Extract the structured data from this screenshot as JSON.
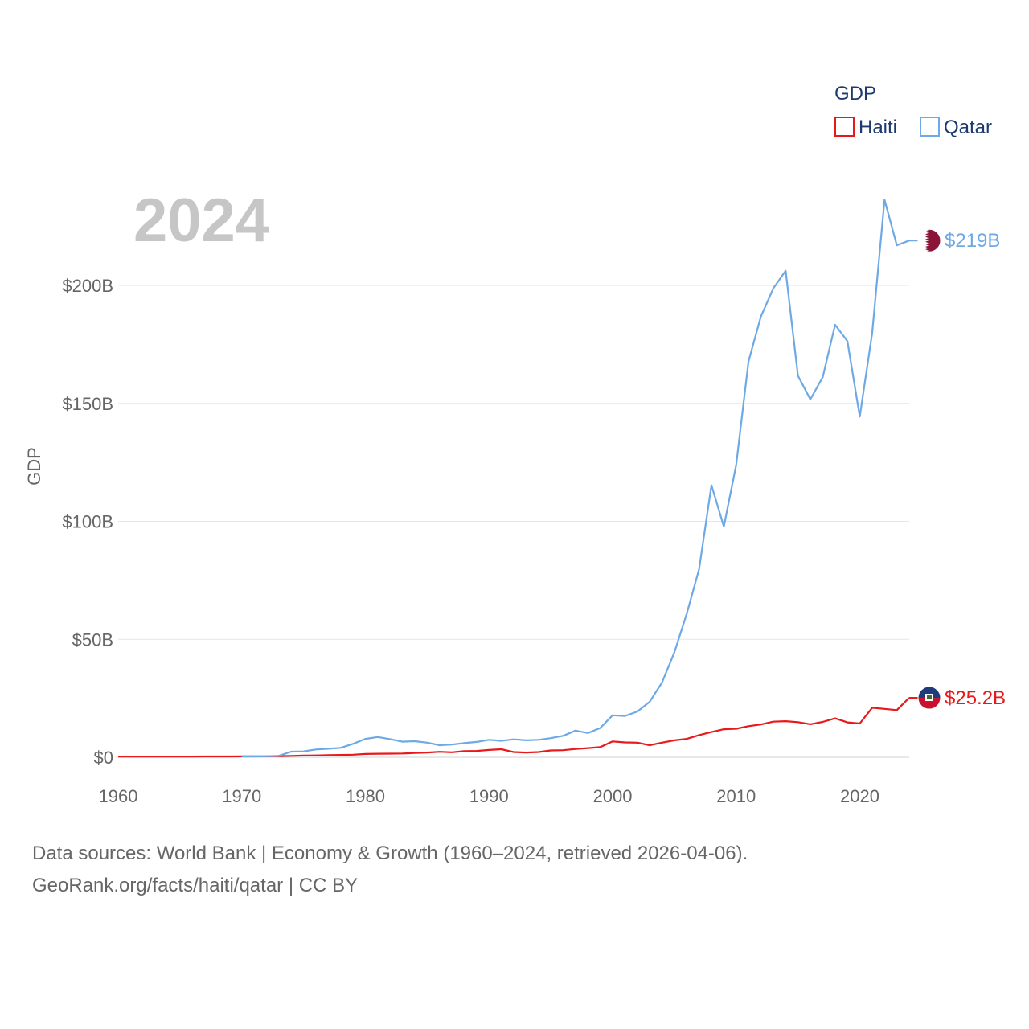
{
  "chart_data": {
    "type": "line",
    "title": "GDP",
    "year_label": "2024",
    "ylabel": "GDP",
    "xlabel": "",
    "xlim": [
      1960,
      2024
    ],
    "ylim": [
      0,
      200000000000
    ],
    "x_ticks": [
      1960,
      1970,
      1980,
      1990,
      2000,
      2010,
      2020
    ],
    "x_tick_labels": [
      "1960",
      "1970",
      "1980",
      "1990",
      "2000",
      "2010",
      "2020"
    ],
    "y_ticks": [
      0,
      50000000000,
      100000000000,
      150000000000,
      200000000000
    ],
    "y_tick_labels": [
      "$0",
      "$50B",
      "$100B",
      "$150B",
      "$200B"
    ],
    "legend_title": "GDP",
    "legend_position": "top-right",
    "grid": true,
    "series": [
      {
        "name": "Haiti",
        "color": "#e8191b",
        "end_label": "$25.2B",
        "flag_icon": "haiti-flag-icon",
        "x": [
          1960,
          1961,
          1962,
          1963,
          1964,
          1965,
          1966,
          1967,
          1968,
          1969,
          1970,
          1971,
          1972,
          1973,
          1974,
          1975,
          1976,
          1977,
          1978,
          1979,
          1980,
          1981,
          1982,
          1983,
          1984,
          1985,
          1986,
          1987,
          1988,
          1989,
          1990,
          1991,
          1992,
          1993,
          1994,
          1995,
          1996,
          1997,
          1998,
          1999,
          2000,
          2001,
          2002,
          2003,
          2004,
          2005,
          2006,
          2007,
          2008,
          2009,
          2010,
          2011,
          2012,
          2013,
          2014,
          2015,
          2016,
          2017,
          2018,
          2019,
          2020,
          2021,
          2022,
          2023,
          2024
        ],
        "values": [
          270000000,
          275000000,
          280000000,
          290000000,
          300000000,
          310000000,
          320000000,
          330000000,
          340000000,
          350000000,
          360000000,
          380000000,
          420000000,
          480000000,
          580000000,
          700000000,
          800000000,
          900000000,
          1000000000,
          1100000000,
          1400000000,
          1500000000,
          1550000000,
          1600000000,
          1800000000,
          2000000000,
          2300000000,
          2100000000,
          2600000000,
          2700000000,
          3100000000,
          3400000000,
          2200000000,
          2000000000,
          2200000000,
          2900000000,
          3000000000,
          3500000000,
          3900000000,
          4300000000,
          6700000000,
          6300000000,
          6200000000,
          5100000000,
          6200000000,
          7200000000,
          7800000000,
          9400000000,
          10700000000,
          11900000000,
          12100000000,
          13200000000,
          13900000000,
          15100000000,
          15300000000,
          14900000000,
          14000000000,
          15000000000,
          16500000000,
          14800000000,
          14300000000,
          21000000000,
          20500000000,
          20000000000,
          25200000000
        ]
      },
      {
        "name": "Qatar",
        "color": "#6ea9e6",
        "end_label": "$219B",
        "flag_icon": "qatar-flag-icon",
        "x": [
          1970,
          1971,
          1972,
          1973,
          1974,
          1975,
          1976,
          1977,
          1978,
          1979,
          1980,
          1981,
          1982,
          1983,
          1984,
          1985,
          1986,
          1987,
          1988,
          1989,
          1990,
          1991,
          1992,
          1993,
          1994,
          1995,
          1996,
          1997,
          1998,
          1999,
          2000,
          2001,
          2002,
          2003,
          2004,
          2005,
          2006,
          2007,
          2008,
          2009,
          2010,
          2011,
          2012,
          2013,
          2014,
          2015,
          2016,
          2017,
          2018,
          2019,
          2020,
          2021,
          2022,
          2023,
          2024
        ],
        "values": [
          300000000,
          350000000,
          400000000,
          600000000,
          2400000000,
          2500000000,
          3300000000,
          3600000000,
          4000000000,
          5700000000,
          7800000000,
          8600000000,
          7700000000,
          6600000000,
          6800000000,
          6200000000,
          5100000000,
          5400000000,
          6000000000,
          6500000000,
          7400000000,
          7000000000,
          7600000000,
          7200000000,
          7400000000,
          8100000000,
          9100000000,
          11300000000,
          10300000000,
          12400000000,
          17800000000,
          17500000000,
          19400000000,
          23500000000,
          31700000000,
          44500000000,
          60900000000,
          79700000000,
          115300000000,
          97800000000,
          124000000000,
          167800000000,
          186800000000,
          198700000000,
          206200000000,
          161700000000,
          151700000000,
          161100000000,
          183300000000,
          176400000000,
          144400000000,
          179700000000,
          236300000000,
          217000000000,
          219000000000
        ]
      }
    ]
  },
  "footer": {
    "line1": "Data sources: World Bank | Economy & Growth (1960–2024, retrieved 2026-04-06).",
    "line2": "GeoRank.org/facts/haiti/qatar | CC BY"
  }
}
